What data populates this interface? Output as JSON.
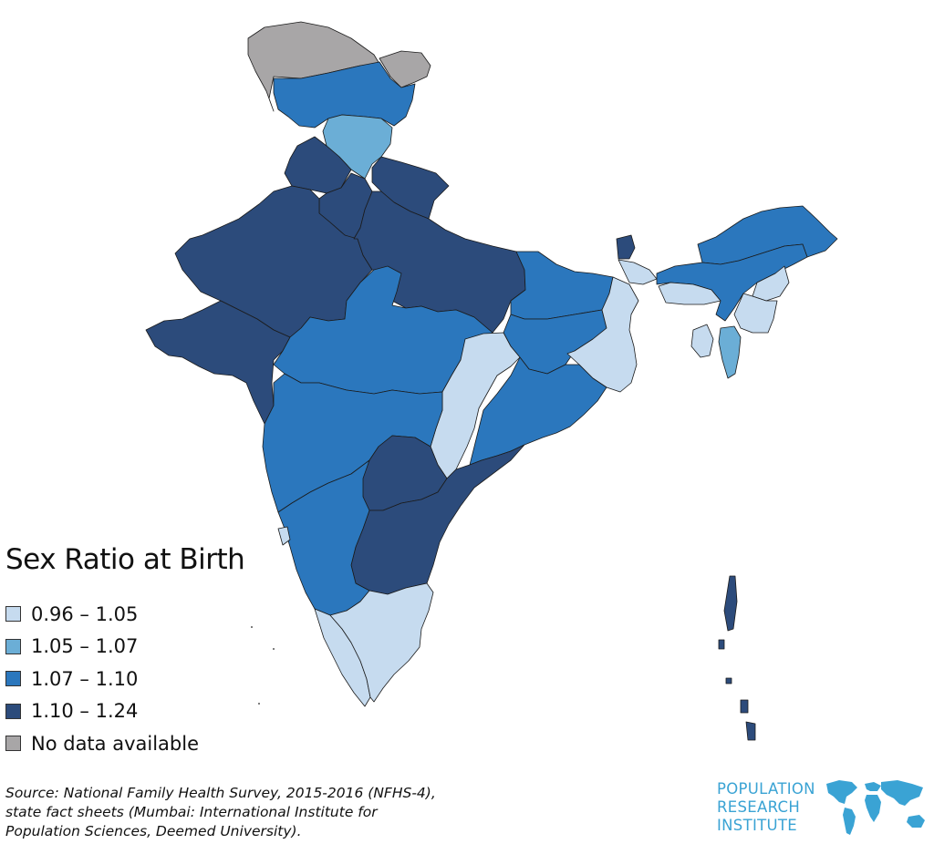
{
  "legend": {
    "title": "Sex Ratio at Birth",
    "items": [
      {
        "label": "0.96 – 1.05",
        "color": "#c6dbef"
      },
      {
        "label": "1.05 – 1.07",
        "color": "#6baed6"
      },
      {
        "label": "1.07 – 1.10",
        "color": "#2b77bd"
      },
      {
        "label": "1.10 – 1.24",
        "color": "#2c4b7b"
      },
      {
        "label": "No data available",
        "color": "#a8a6a7"
      }
    ]
  },
  "source": {
    "line1": "Source: National Family Health Survey, 2015-2016 (NFHS-4),",
    "line2": "state fact sheets (Mumbai: International Institute for",
    "line3": "Population Sciences, Deemed University)."
  },
  "logo": {
    "line1": "POPULATION",
    "line2": "RESEARCH",
    "line3": "INSTITUTE",
    "color": "#3aa3d4"
  },
  "regions": [
    {
      "name": "Jammu & Kashmir",
      "class": "1.07 – 1.10"
    },
    {
      "name": "Himachal Pradesh",
      "class": "1.05 – 1.07"
    },
    {
      "name": "Punjab",
      "class": "1.10 – 1.24"
    },
    {
      "name": "Uttarakhand",
      "class": "1.10 – 1.24"
    },
    {
      "name": "Haryana",
      "class": "1.10 – 1.24"
    },
    {
      "name": "Rajasthan",
      "class": "1.10 – 1.24"
    },
    {
      "name": "Uttar Pradesh",
      "class": "1.10 – 1.24"
    },
    {
      "name": "Gujarat",
      "class": "1.10 – 1.24"
    },
    {
      "name": "Madhya Pradesh",
      "class": "1.07 – 1.10"
    },
    {
      "name": "Bihar",
      "class": "1.07 – 1.10"
    },
    {
      "name": "Jharkhand",
      "class": "1.07 – 1.10"
    },
    {
      "name": "West Bengal",
      "class": "0.96 – 1.05"
    },
    {
      "name": "Chhattisgarh",
      "class": "0.96 – 1.05"
    },
    {
      "name": "Odisha",
      "class": "1.07 – 1.10"
    },
    {
      "name": "Maharashtra",
      "class": "1.07 – 1.10"
    },
    {
      "name": "Telangana",
      "class": "1.10 – 1.24"
    },
    {
      "name": "Andhra Pradesh",
      "class": "1.10 – 1.24"
    },
    {
      "name": "Karnataka",
      "class": "1.07 – 1.10"
    },
    {
      "name": "Goa",
      "class": "0.96 – 1.05"
    },
    {
      "name": "Kerala",
      "class": "0.96 – 1.05"
    },
    {
      "name": "Tamil Nadu",
      "class": "0.96 – 1.05"
    },
    {
      "name": "Sikkim",
      "class": "1.10 – 1.24"
    },
    {
      "name": "Arunachal Pradesh",
      "class": "1.07 – 1.10"
    },
    {
      "name": "Assam",
      "class": "1.07 – 1.10"
    },
    {
      "name": "Meghalaya",
      "class": "0.96 – 1.05"
    },
    {
      "name": "Nagaland",
      "class": "0.96 – 1.05"
    },
    {
      "name": "Manipur",
      "class": "0.96 – 1.05"
    },
    {
      "name": "Mizoram",
      "class": "1.05 – 1.07"
    },
    {
      "name": "Tripura",
      "class": "0.96 – 1.05"
    },
    {
      "name": "Andaman & Nicobar Islands",
      "class": "1.10 – 1.24"
    },
    {
      "name": "Pakistan-administered Kashmir",
      "class": "No data available"
    },
    {
      "name": "Aksai Chin",
      "class": "No data available"
    }
  ]
}
